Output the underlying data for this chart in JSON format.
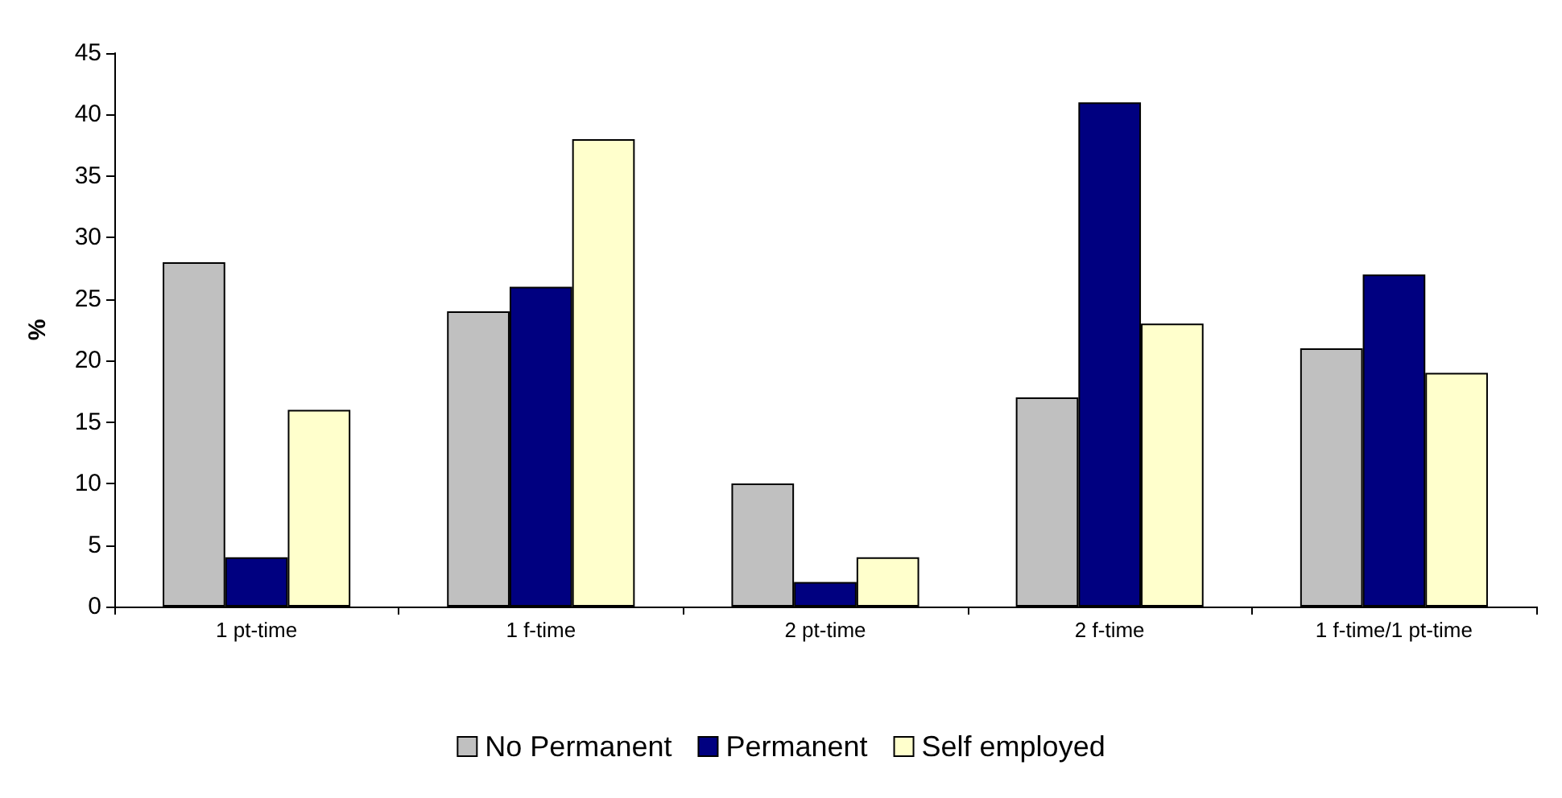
{
  "chart_data": {
    "type": "bar",
    "ylabel": "%",
    "categories": [
      "1 pt-time",
      "1 f-time",
      "2 pt-time",
      "2 f-time",
      "1 f-time/1 pt-time"
    ],
    "series": [
      {
        "name": "No Permanent",
        "color": "#c0c0c0",
        "values": [
          28,
          24,
          10,
          17,
          21
        ]
      },
      {
        "name": "Permanent",
        "color": "#000080",
        "values": [
          4,
          26,
          2,
          41,
          27
        ]
      },
      {
        "name": "Self employed",
        "color": "#ffffcc",
        "values": [
          16,
          38,
          4,
          23,
          19
        ]
      }
    ],
    "ylim": [
      0,
      45
    ],
    "yticks": [
      0,
      5,
      10,
      15,
      20,
      25,
      30,
      35,
      40,
      45
    ],
    "grid": false,
    "legend": "bottom"
  }
}
